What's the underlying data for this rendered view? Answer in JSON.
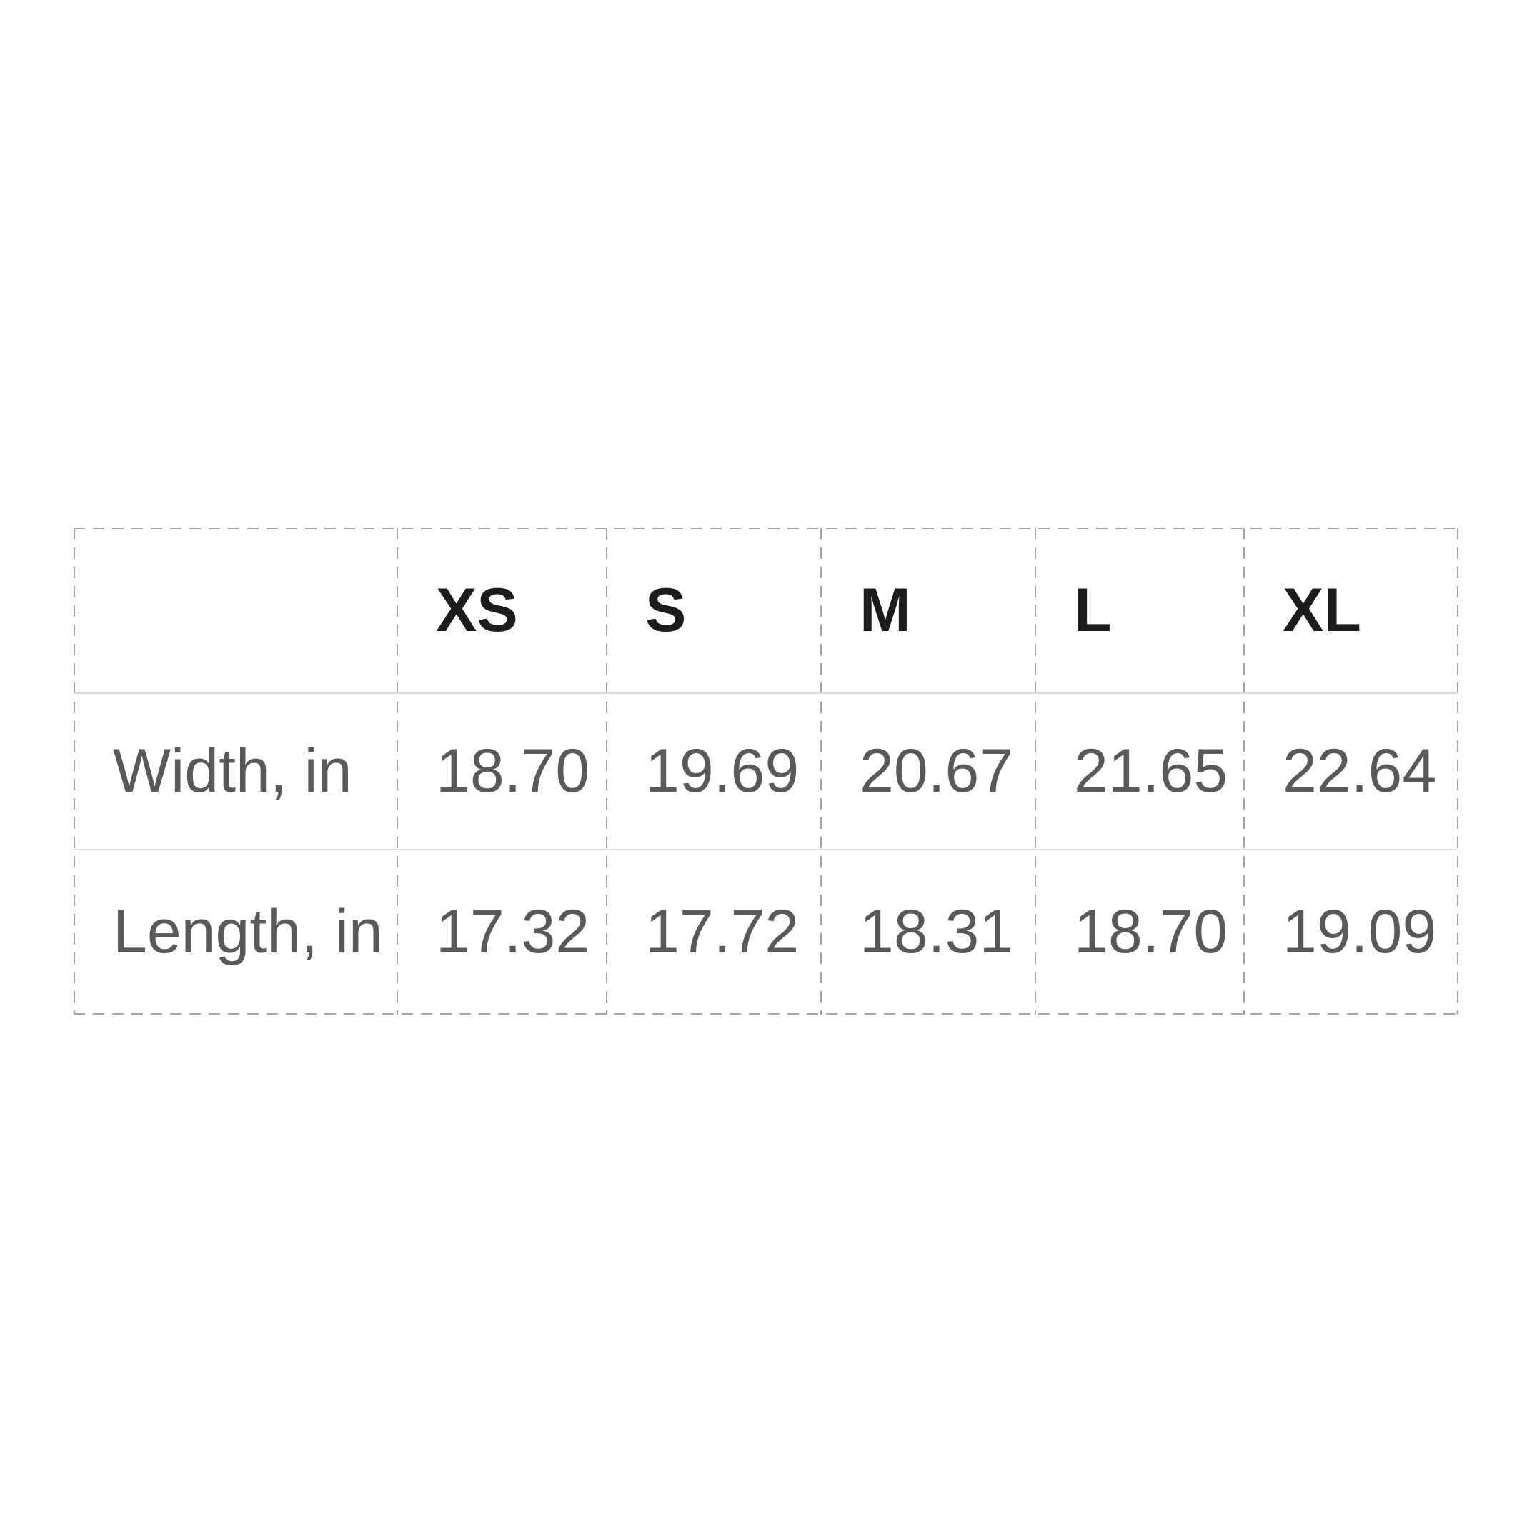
{
  "chart_data": {
    "type": "table",
    "title": "",
    "columns": [
      "XS",
      "S",
      "M",
      "L",
      "XL"
    ],
    "rows": [
      {
        "label": "Width, in",
        "values": [
          "18.70",
          "19.69",
          "20.67",
          "21.65",
          "22.64"
        ]
      },
      {
        "label": "Length, in",
        "values": [
          "17.32",
          "17.72",
          "18.31",
          "18.70",
          "19.09"
        ]
      }
    ]
  },
  "colors": {
    "background": "#ffffff",
    "header_text": "#1c1c1c",
    "body_text": "#595959",
    "dashed_border": "#a3a3a3",
    "solid_divider": "#d9d9d9"
  }
}
